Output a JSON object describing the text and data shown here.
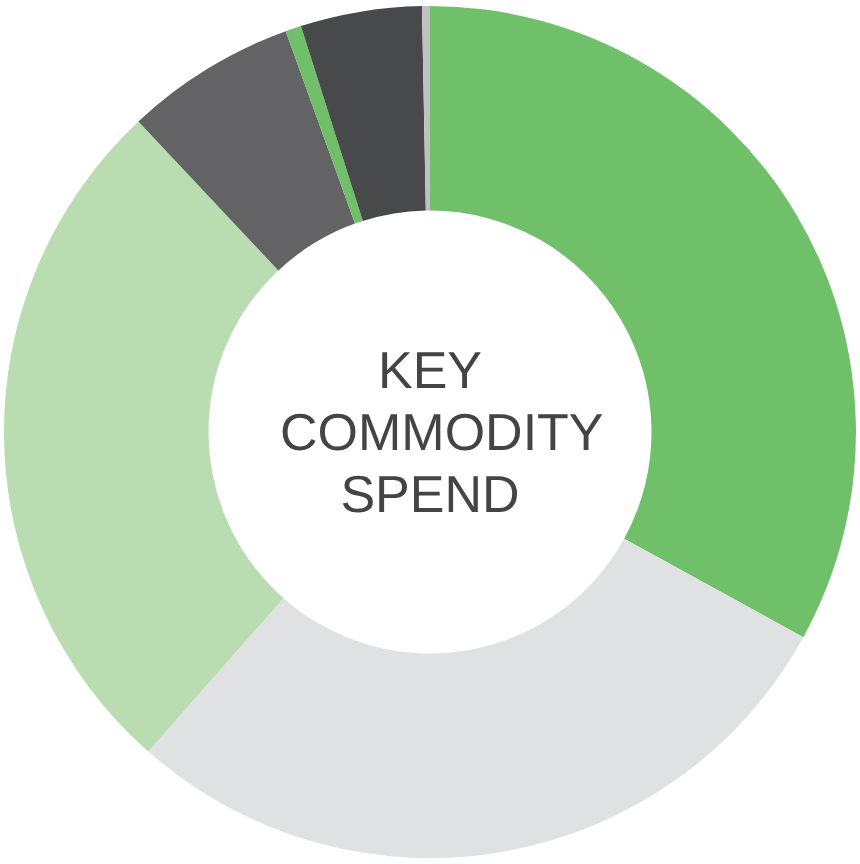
{
  "chart_data": {
    "type": "donut",
    "title": "KEY COMMODITY SPEND",
    "categories": [
      null,
      null,
      null,
      null,
      null,
      null,
      null
    ],
    "values": [
      33,
      28.5,
      26.5,
      6.5,
      0.6,
      4.6,
      0.3
    ],
    "colors": [
      "#70c06a",
      "#e0e1e3",
      "#b9dcb0",
      "#636365",
      "#70c06a",
      "#48494b",
      "#c0c0c2"
    ],
    "legend": false
  }
}
